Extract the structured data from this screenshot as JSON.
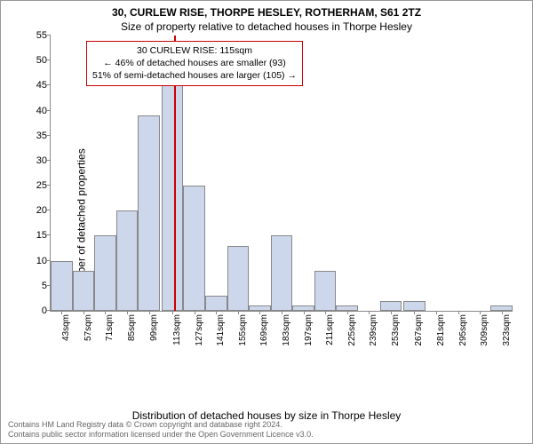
{
  "title_main": "30, CURLEW RISE, THORPE HESLEY, ROTHERHAM, S61 2TZ",
  "title_sub": "Size of property relative to detached houses in Thorpe Hesley",
  "ylabel": "Number of detached properties",
  "xlabel": "Distribution of detached houses by size in Thorpe Hesley",
  "footer_line1": "Contains HM Land Registry data © Crown copyright and database right 2024.",
  "footer_line2": "Contains public sector information licensed under the Open Government Licence v3.0.",
  "infobox": {
    "line1": "30 CURLEW RISE: 115sqm",
    "line2": "← 46% of detached houses are smaller (93)",
    "line3": "51% of semi-detached houses are larger (105) →"
  },
  "chart": {
    "type": "histogram",
    "bar_color": "#cdd7ec",
    "bar_border_color": "#888888",
    "background_color": "#ffffff",
    "axis_color": "#888888",
    "ref_line_color": "#cc0000",
    "ref_line_x": 115,
    "infobox_border_color": "#cc0000",
    "title_fontsize": 12,
    "label_fontsize": 12,
    "tick_fontsize": 11,
    "xtick_fontsize": 10,
    "xtick_rotation": -90,
    "x_start": 36,
    "x_end": 332,
    "bar_width_units": 14,
    "ylim": [
      0,
      55
    ],
    "ytick_step": 5,
    "xtick_start": 43,
    "xtick_step": 14,
    "xtick_suffix": "sqm",
    "bars": [
      {
        "x": 43,
        "value": 10
      },
      {
        "x": 57,
        "value": 8
      },
      {
        "x": 71,
        "value": 15
      },
      {
        "x": 85,
        "value": 20
      },
      {
        "x": 99,
        "value": 39
      },
      {
        "x": 114,
        "value": 50
      },
      {
        "x": 128,
        "value": 25
      },
      {
        "x": 142,
        "value": 3
      },
      {
        "x": 156,
        "value": 13
      },
      {
        "x": 170,
        "value": 1
      },
      {
        "x": 184,
        "value": 15
      },
      {
        "x": 198,
        "value": 1
      },
      {
        "x": 212,
        "value": 8
      },
      {
        "x": 226,
        "value": 1
      },
      {
        "x": 240,
        "value": 0
      },
      {
        "x": 254,
        "value": 2
      },
      {
        "x": 269,
        "value": 2
      },
      {
        "x": 283,
        "value": 0
      },
      {
        "x": 297,
        "value": 0
      },
      {
        "x": 311,
        "value": 0
      },
      {
        "x": 325,
        "value": 1
      }
    ]
  }
}
